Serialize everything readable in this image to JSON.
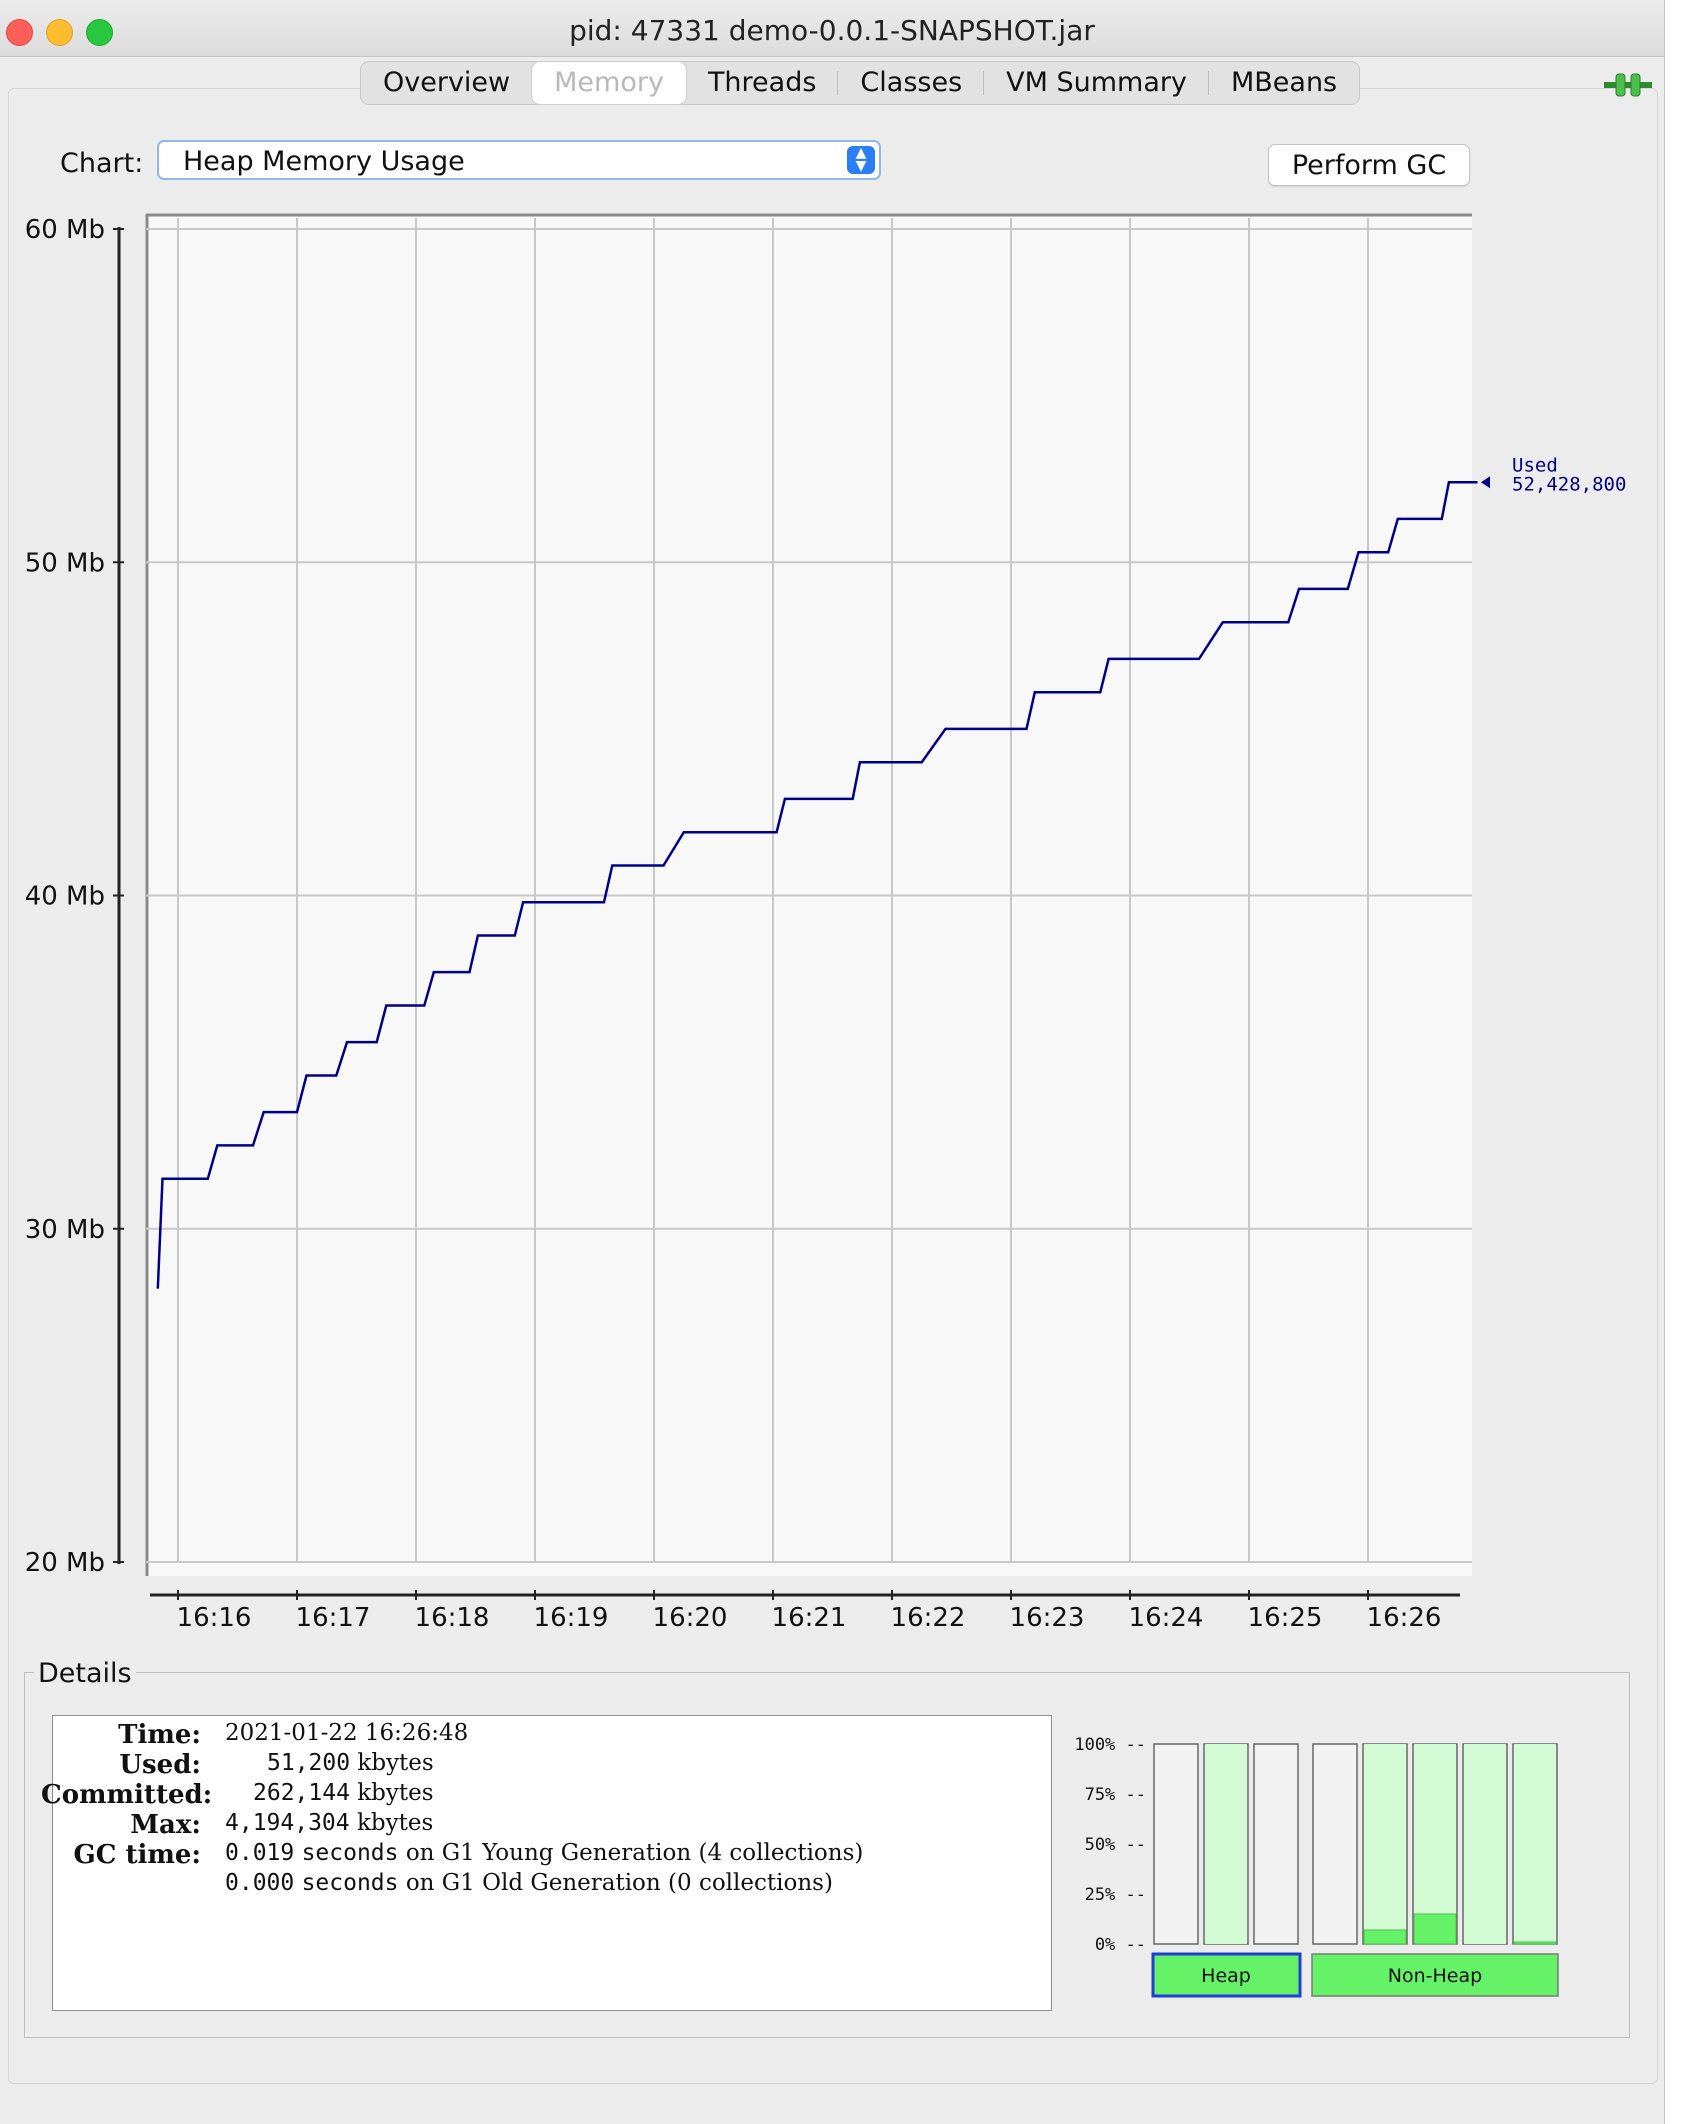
{
  "window": {
    "title": "pid: 47331 demo-0.0.1-SNAPSHOT.jar"
  },
  "tabs": [
    {
      "label": "Overview"
    },
    {
      "label": "Memory",
      "active": true
    },
    {
      "label": "Threads"
    },
    {
      "label": "Classes"
    },
    {
      "label": "VM Summary"
    },
    {
      "label": "MBeans"
    }
  ],
  "toolbar": {
    "chart_label": "Chart:",
    "chart_value": "Heap Memory Usage",
    "gc_button": "Perform GC"
  },
  "chart_data": {
    "type": "line",
    "title": "",
    "xlabel": "",
    "ylabel": "",
    "y_ticks": [
      "20 Mb",
      "30 Mb",
      "40 Mb",
      "50 Mb",
      "60 Mb"
    ],
    "ylim": [
      20,
      60
    ],
    "x_ticks": [
      "16:16",
      "16:17",
      "16:18",
      "16:19",
      "16:20",
      "16:21",
      "16:22",
      "16:23",
      "16:24",
      "16:25",
      "16:26"
    ],
    "xlim_minutes": [
      15.8,
      27.0
    ],
    "grid": true,
    "line_color": "#00008b",
    "series": [
      {
        "name": "Used",
        "current_value": "52,428,800",
        "points": [
          [
            15.83,
            28.2
          ],
          [
            15.87,
            31.5
          ],
          [
            16.25,
            31.5
          ],
          [
            16.33,
            32.5
          ],
          [
            16.63,
            32.5
          ],
          [
            16.72,
            33.5
          ],
          [
            17.0,
            33.5
          ],
          [
            17.08,
            34.6
          ],
          [
            17.33,
            34.6
          ],
          [
            17.42,
            35.6
          ],
          [
            17.67,
            35.6
          ],
          [
            17.75,
            36.7
          ],
          [
            18.07,
            36.7
          ],
          [
            18.15,
            37.7
          ],
          [
            18.45,
            37.7
          ],
          [
            18.52,
            38.8
          ],
          [
            18.83,
            38.8
          ],
          [
            18.9,
            39.8
          ],
          [
            19.58,
            39.8
          ],
          [
            19.65,
            40.9
          ],
          [
            20.08,
            40.9
          ],
          [
            20.25,
            41.9
          ],
          [
            21.03,
            41.9
          ],
          [
            21.1,
            42.9
          ],
          [
            21.67,
            42.9
          ],
          [
            21.73,
            44.0
          ],
          [
            22.25,
            44.0
          ],
          [
            22.45,
            45.0
          ],
          [
            23.13,
            45.0
          ],
          [
            23.2,
            46.1
          ],
          [
            23.75,
            46.1
          ],
          [
            23.82,
            47.1
          ],
          [
            24.58,
            47.1
          ],
          [
            24.78,
            48.2
          ],
          [
            25.33,
            48.2
          ],
          [
            25.42,
            49.2
          ],
          [
            25.83,
            49.2
          ],
          [
            25.92,
            50.3
          ],
          [
            26.17,
            50.3
          ],
          [
            26.25,
            51.3
          ],
          [
            26.62,
            51.3
          ],
          [
            26.68,
            52.4
          ],
          [
            26.92,
            52.4
          ]
        ]
      }
    ]
  },
  "details": {
    "title": "Details",
    "time_label": "Time:",
    "time_value": "2021-01-22 16:26:48",
    "used_label": "Used:",
    "used_num": "51,200",
    "used_unit": "kbytes",
    "committed_label": "Committed:",
    "committed_num": "262,144",
    "committed_unit": "kbytes",
    "max_label": "Max:",
    "max_num": "4,194,304",
    "max_unit": "kbytes",
    "gc_label": "GC time:",
    "gc1_num": "0.019",
    "gc1_unit": "seconds",
    "gc1_text": "on G1 Young Generation (4 collections)",
    "gc2_num": "0.000",
    "gc2_unit": "seconds",
    "gc2_text": "on G1 Old Generation (0 collections)"
  },
  "pool_bars": {
    "ticks": [
      "100% --",
      "75% --",
      "50% --",
      "25% --",
      "0% --"
    ],
    "heap_label": "Heap",
    "nonheap_label": "Non-Heap",
    "heap": [
      {
        "committed": 0.0,
        "used": 0.0
      },
      {
        "committed": 1.0,
        "used": 0.0
      },
      {
        "committed": 0.0,
        "used": 0.0
      }
    ],
    "nonheap": [
      {
        "committed": 0.0,
        "used": 0.0
      },
      {
        "committed": 1.0,
        "used": 0.07
      },
      {
        "committed": 1.0,
        "used": 0.15
      },
      {
        "committed": 1.0,
        "used": 0.0
      },
      {
        "committed": 1.0,
        "used": 0.01
      }
    ],
    "committed_color": "#d4fcd4",
    "used_color": "#66f266",
    "button_color": "#66f266"
  }
}
